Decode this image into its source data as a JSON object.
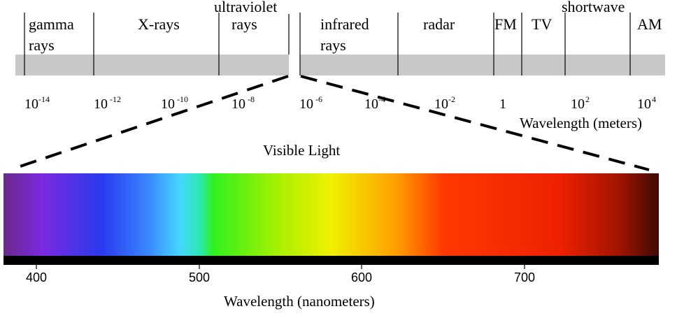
{
  "spectrum": {
    "bands": [
      {
        "id": "gamma",
        "lines": [
          "gamma",
          "rays"
        ]
      },
      {
        "id": "xray",
        "lines": [
          "X-rays"
        ]
      },
      {
        "id": "uv",
        "lines": [
          "ultraviolet",
          "rays"
        ]
      },
      {
        "id": "ir",
        "lines": [
          "infrared",
          "rays"
        ]
      },
      {
        "id": "radar",
        "lines": [
          "radar"
        ]
      },
      {
        "id": "fm",
        "lines": [
          "FM"
        ]
      },
      {
        "id": "tv",
        "lines": [
          "TV"
        ]
      },
      {
        "id": "shortwave",
        "lines": [
          "shortwave"
        ]
      },
      {
        "id": "am",
        "lines": [
          "AM"
        ]
      }
    ],
    "power_labels": [
      {
        "base": "10",
        "exp": "-14"
      },
      {
        "base": "10",
        "exp": "-12"
      },
      {
        "base": "10",
        "exp": "-10"
      },
      {
        "base": "10",
        "exp": "-8"
      },
      {
        "base": "10",
        "exp": "-6"
      },
      {
        "base": "10",
        "exp": "-4"
      },
      {
        "base": "10",
        "exp": "-2"
      },
      {
        "base": "1",
        "exp": ""
      },
      {
        "base": "10",
        "exp": "2"
      },
      {
        "base": "10",
        "exp": "4"
      }
    ],
    "axis_label": "Wavelength (meters)",
    "bar_color": "#c8c8c8"
  },
  "visible": {
    "title": "Visible Light",
    "ticks": [
      "400",
      "500",
      "600",
      "700"
    ],
    "axis_label": "Wavelength (nanometers)",
    "gradient": [
      {
        "offset": 0.0,
        "color": "#6a2a8a"
      },
      {
        "offset": 0.06,
        "color": "#7a2ae0"
      },
      {
        "offset": 0.15,
        "color": "#2a3aee"
      },
      {
        "offset": 0.22,
        "color": "#3a86ff"
      },
      {
        "offset": 0.27,
        "color": "#44d8ff"
      },
      {
        "offset": 0.3,
        "color": "#2ae8b0"
      },
      {
        "offset": 0.32,
        "color": "#30f020"
      },
      {
        "offset": 0.42,
        "color": "#a8f000"
      },
      {
        "offset": 0.5,
        "color": "#f0f000"
      },
      {
        "offset": 0.6,
        "color": "#ff9e00"
      },
      {
        "offset": 0.67,
        "color": "#ff3a00"
      },
      {
        "offset": 0.85,
        "color": "#ee2000"
      },
      {
        "offset": 0.94,
        "color": "#a01400"
      },
      {
        "offset": 1.0,
        "color": "#3e0a00"
      }
    ]
  }
}
